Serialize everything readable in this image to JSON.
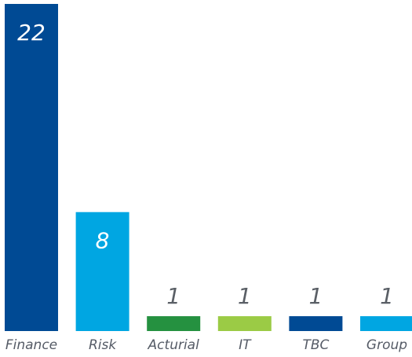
{
  "chart_data": {
    "type": "bar",
    "categories": [
      "Finance",
      "Risk",
      "Acturial",
      "IT",
      "TBC",
      "Group"
    ],
    "values": [
      22,
      8,
      1,
      1,
      1,
      1
    ],
    "value_labels": [
      "22",
      "8",
      "1",
      "1",
      "1",
      "1"
    ],
    "bar_colors": [
      "#004a94",
      "#00a6e2",
      "#259140",
      "#9bcb45",
      "#004a94",
      "#00a6e2"
    ],
    "value_label_colors": [
      "#ffffff",
      "#ffffff",
      "#5a5f66",
      "#5a5f66",
      "#5a5f66",
      "#5a5f66"
    ],
    "value_label_position": [
      "inside",
      "inside",
      "above",
      "above",
      "above",
      "above"
    ],
    "ylim": [
      0,
      22
    ],
    "grid": false,
    "legend": "none",
    "title": "",
    "xlabel": "",
    "ylabel": ""
  }
}
